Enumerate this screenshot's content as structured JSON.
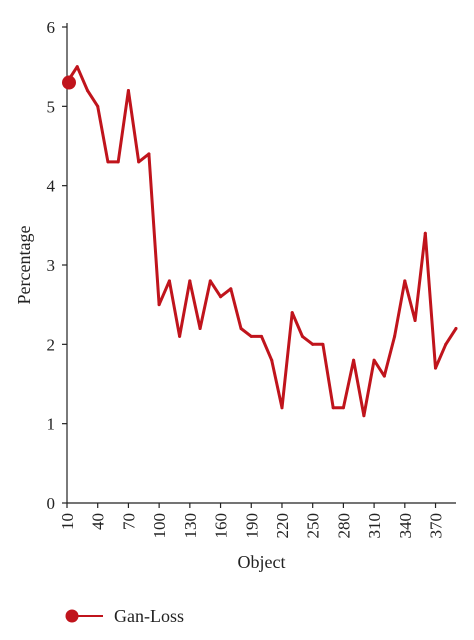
{
  "chart_data": {
    "type": "line",
    "xlabel": "Object",
    "ylabel": "Percentage",
    "ylim": [
      0,
      6
    ],
    "y_ticks": [
      0,
      1,
      2,
      3,
      4,
      5,
      6
    ],
    "x_ticks": [
      10,
      40,
      70,
      100,
      130,
      160,
      190,
      220,
      250,
      280,
      310,
      340,
      370
    ],
    "xlim": [
      10,
      390
    ],
    "grid": false,
    "legend_position": "bottom-left",
    "colors": {
      "series": "#c0141c",
      "axis": "#222222"
    },
    "series": [
      {
        "name": "Gan-Loss",
        "x": [
          10,
          20,
          30,
          40,
          50,
          60,
          70,
          80,
          90,
          100,
          110,
          120,
          130,
          140,
          150,
          160,
          170,
          180,
          190,
          200,
          210,
          220,
          230,
          240,
          250,
          260,
          270,
          280,
          290,
          300,
          310,
          320,
          330,
          340,
          350,
          360,
          370,
          380,
          390
        ],
        "values": [
          5.3,
          5.5,
          5.2,
          5.0,
          4.3,
          4.3,
          5.2,
          4.3,
          4.4,
          2.5,
          2.8,
          2.1,
          2.8,
          2.2,
          2.8,
          2.6,
          2.7,
          2.2,
          2.1,
          2.1,
          1.8,
          1.2,
          2.4,
          2.1,
          2.0,
          2.0,
          1.2,
          1.2,
          1.8,
          1.1,
          1.8,
          1.6,
          2.1,
          2.8,
          2.3,
          3.4,
          1.7,
          2.0,
          2.2
        ]
      }
    ]
  }
}
